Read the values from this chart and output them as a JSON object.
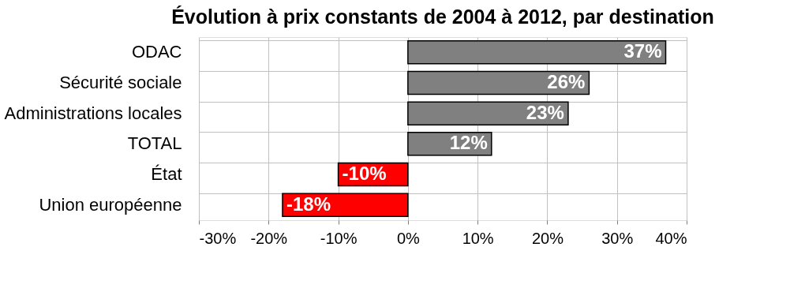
{
  "chart_data": {
    "type": "bar",
    "orientation": "horizontal",
    "title": "Évolution à prix constants de 2004 à 2012, par destination",
    "categories": [
      "ODAC",
      "Sécurité sociale",
      "Administrations locales",
      "TOTAL",
      "État",
      "Union européenne"
    ],
    "values": [
      37,
      26,
      23,
      12,
      -10,
      -18
    ],
    "colors": [
      "#808080",
      "#808080",
      "#808080",
      "#808080",
      "#ff0000",
      "#ff0000"
    ],
    "value_labels": [
      "37%",
      "26%",
      "23%",
      "12%",
      "-10%",
      "-18%"
    ],
    "xlim": [
      -30,
      40
    ],
    "xticks": [
      {
        "value": -30,
        "label": "-30%"
      },
      {
        "value": -20,
        "label": "-20%"
      },
      {
        "value": -10,
        "label": "-10%"
      },
      {
        "value": 0,
        "label": "0%"
      },
      {
        "value": 10,
        "label": "10%"
      },
      {
        "value": 20,
        "label": "20%"
      },
      {
        "value": 30,
        "label": "30%"
      },
      {
        "value": 40,
        "label": "40%"
      }
    ],
    "grid": true
  }
}
